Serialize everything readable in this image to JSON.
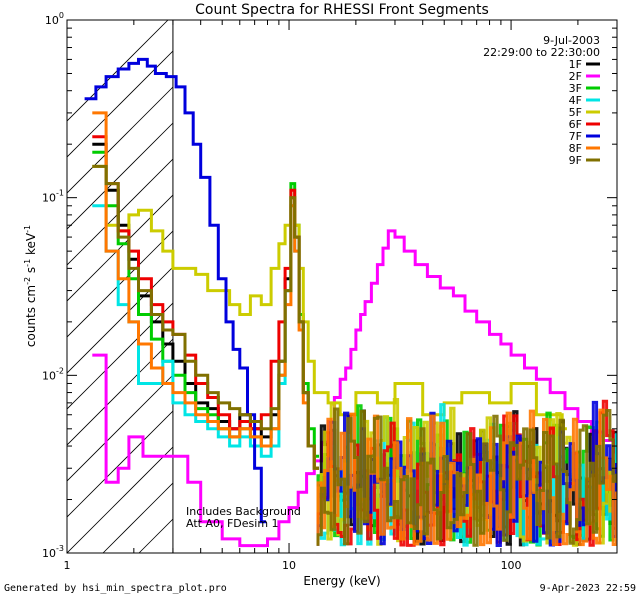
{
  "chart_data": {
    "type": "line",
    "title": "Count Spectra for RHESSI Front Segments",
    "xlabel": "Energy (keV)",
    "ylabel": "counts cm^-2 s^-1 keV^-1",
    "ylabel_parts": {
      "base": "counts cm",
      "exp1": "-2",
      "mid1": " s",
      "exp2": "-1",
      "mid2": " keV",
      "exp3": "-1"
    },
    "x_scale": "log",
    "y_scale": "log",
    "xlim": [
      1,
      300
    ],
    "ylim": [
      0.001,
      1
    ],
    "x_ticks": [
      {
        "value": 1,
        "label": "1"
      },
      {
        "value": 10,
        "label": "10"
      },
      {
        "value": 100,
        "label": "100"
      }
    ],
    "y_ticks": [
      {
        "value": 0.001,
        "base": "10",
        "exp": "-3"
      },
      {
        "value": 0.01,
        "base": "10",
        "exp": "-2"
      },
      {
        "value": 0.1,
        "base": "10",
        "exp": "-1"
      },
      {
        "value": 1,
        "base": "10",
        "exp": "0"
      }
    ],
    "legend_placement": "top-right",
    "date": "9-Jul-2003",
    "time_range": "22:29:00 to 22:30:00",
    "notes": [
      "Includes Background",
      "Att A0, FDesim 1"
    ],
    "hatched_region_below_keV": 3,
    "noise_floor_segments": [
      "1F",
      "3F",
      "4F",
      "5F",
      "6F",
      "7F",
      "8F",
      "9F"
    ],
    "series": [
      {
        "name": "1F",
        "color": "#000000",
        "x": [
          1.3,
          1.5,
          1.7,
          1.9,
          2.1,
          2.4,
          2.7,
          3.0,
          3.4,
          3.8,
          4.3,
          4.8,
          5.4,
          6.0,
          6.7,
          7.5,
          8.3,
          9.0,
          9.6,
          10.2,
          10.6,
          11.1,
          11.6,
          12.2,
          13.0
        ],
        "y": [
          0.2,
          0.11,
          0.07,
          0.045,
          0.028,
          0.02,
          0.015,
          0.012,
          0.009,
          0.007,
          0.0065,
          0.0055,
          0.005,
          0.006,
          0.005,
          0.0045,
          0.006,
          0.012,
          0.035,
          0.1,
          0.06,
          0.02,
          0.008,
          0.004,
          0.003
        ]
      },
      {
        "name": "2F",
        "color": "#ff00ff",
        "x": [
          1.3,
          1.5,
          1.7,
          1.9,
          2.2,
          2.6,
          3.0,
          3.5,
          4.0,
          5.0,
          6.0,
          7.0,
          8.0,
          9.0,
          10.0,
          11.0,
          12.0,
          13.0,
          14.0,
          15.0,
          16.0,
          17.0,
          18.0,
          19.0,
          20.0,
          21.0,
          22.0,
          23.5,
          25.0,
          26.5,
          28.0,
          30.0,
          33.0,
          37.0,
          42.0,
          48.0,
          55.0,
          62.0,
          70.0,
          80.0,
          90.0,
          100.0,
          115.0,
          130.0,
          150.0,
          175.0,
          200.0,
          230.0,
          260.0,
          290.0
        ],
        "y": [
          0.013,
          0.0025,
          0.003,
          0.0045,
          0.0035,
          0.0035,
          0.0035,
          0.0025,
          0.0015,
          0.0012,
          0.0011,
          0.0011,
          0.0012,
          0.0015,
          0.0018,
          0.0022,
          0.0028,
          0.0033,
          0.0042,
          0.0055,
          0.0075,
          0.0095,
          0.011,
          0.014,
          0.018,
          0.022,
          0.026,
          0.033,
          0.042,
          0.052,
          0.065,
          0.06,
          0.05,
          0.042,
          0.036,
          0.031,
          0.028,
          0.023,
          0.02,
          0.017,
          0.015,
          0.013,
          0.011,
          0.0095,
          0.008,
          0.0065,
          0.0055,
          0.0048,
          0.0043,
          0.0037
        ]
      },
      {
        "name": "3F",
        "color": "#00cc00",
        "x": [
          1.3,
          1.5,
          1.7,
          1.9,
          2.1,
          2.4,
          2.7,
          3.0,
          3.4,
          3.8,
          4.3,
          4.8,
          5.4,
          6.0,
          6.7,
          7.5,
          8.3,
          9.0,
          9.6,
          10.2,
          10.6,
          11.1,
          11.6,
          12.2,
          13.0
        ],
        "y": [
          0.18,
          0.09,
          0.055,
          0.035,
          0.022,
          0.016,
          0.012,
          0.01,
          0.008,
          0.0065,
          0.006,
          0.005,
          0.0045,
          0.005,
          0.0045,
          0.004,
          0.005,
          0.01,
          0.03,
          0.12,
          0.07,
          0.022,
          0.009,
          0.005,
          0.0035
        ]
      },
      {
        "name": "4F",
        "color": "#00e5e5",
        "x": [
          1.3,
          1.5,
          1.7,
          1.9,
          2.1,
          2.4,
          2.7,
          3.0,
          3.4,
          3.8,
          4.3,
          4.8,
          5.4,
          6.0,
          6.7,
          7.5,
          8.3,
          9.0,
          9.6,
          10.2,
          10.6,
          11.1,
          11.6,
          12.2,
          13.0
        ],
        "y": [
          0.09,
          0.05,
          0.025,
          0.02,
          0.009,
          0.009,
          0.012,
          0.007,
          0.006,
          0.0055,
          0.005,
          0.0045,
          0.004,
          0.0045,
          0.004,
          0.0035,
          0.004,
          0.009,
          0.03,
          0.09,
          0.05,
          0.02,
          0.008,
          0.004,
          0.003
        ]
      },
      {
        "name": "5F",
        "color": "#cccc00",
        "x": [
          1.3,
          1.5,
          1.7,
          1.9,
          2.1,
          2.4,
          2.7,
          3.0,
          3.4,
          3.8,
          4.3,
          4.8,
          5.4,
          6.0,
          6.7,
          7.5,
          8.3,
          9.0,
          9.6,
          10.2,
          10.6,
          11.1,
          11.6,
          12.2,
          13.0,
          15.0,
          17.0,
          20.0,
          25.0,
          30.0,
          40.0,
          50.0,
          60.0,
          80.0,
          100.0,
          130.0,
          170.0
        ],
        "y": [
          0.15,
          0.07,
          0.065,
          0.08,
          0.085,
          0.065,
          0.05,
          0.04,
          0.04,
          0.037,
          0.03,
          0.03,
          0.025,
          0.022,
          0.028,
          0.025,
          0.04,
          0.055,
          0.07,
          0.1,
          0.07,
          0.04,
          0.02,
          0.012,
          0.008,
          0.007,
          0.006,
          0.008,
          0.007,
          0.009,
          0.006,
          0.007,
          0.008,
          0.007,
          0.009,
          0.006,
          0.005
        ]
      },
      {
        "name": "6F",
        "color": "#ee0000",
        "x": [
          1.3,
          1.5,
          1.7,
          1.9,
          2.1,
          2.4,
          2.7,
          3.0,
          3.4,
          3.8,
          4.3,
          4.8,
          5.4,
          6.0,
          6.7,
          7.5,
          8.3,
          9.0,
          9.6,
          10.2,
          10.6,
          11.1,
          11.6,
          12.2,
          13.0
        ],
        "y": [
          0.22,
          0.12,
          0.065,
          0.05,
          0.035,
          0.025,
          0.02,
          0.017,
          0.013,
          0.009,
          0.0075,
          0.006,
          0.005,
          0.0055,
          0.005,
          0.006,
          0.012,
          0.02,
          0.04,
          0.11,
          0.06,
          0.02,
          0.008,
          0.004,
          0.003
        ]
      },
      {
        "name": "7F",
        "color": "#0000dd",
        "x": [
          1.2,
          1.35,
          1.5,
          1.7,
          1.9,
          2.1,
          2.3,
          2.5,
          2.8,
          3.1,
          3.4,
          3.7,
          4.0,
          4.4,
          4.8,
          5.2,
          5.6,
          6.0,
          6.5,
          7.0,
          7.5
        ],
        "y": [
          0.36,
          0.42,
          0.48,
          0.53,
          0.57,
          0.6,
          0.55,
          0.5,
          0.48,
          0.42,
          0.3,
          0.2,
          0.13,
          0.07,
          0.035,
          0.02,
          0.014,
          0.011,
          0.006,
          0.003,
          0.0015
        ]
      },
      {
        "name": "8F",
        "color": "#ff7700",
        "x": [
          1.3,
          1.5,
          1.7,
          1.9,
          2.1,
          2.4,
          2.7,
          3.0,
          3.4,
          3.8,
          4.3,
          4.8,
          5.4,
          6.0,
          6.7,
          7.5,
          8.3,
          9.0,
          9.6,
          10.2,
          10.6,
          11.1,
          11.6,
          12.2,
          13.0
        ],
        "y": [
          0.3,
          0.05,
          0.035,
          0.02,
          0.015,
          0.011,
          0.009,
          0.008,
          0.007,
          0.006,
          0.0055,
          0.005,
          0.0045,
          0.005,
          0.0045,
          0.004,
          0.005,
          0.01,
          0.025,
          0.09,
          0.05,
          0.018,
          0.007,
          0.004,
          0.003
        ]
      },
      {
        "name": "9F",
        "color": "#807000",
        "x": [
          1.3,
          1.5,
          1.7,
          1.9,
          2.1,
          2.4,
          2.7,
          3.0,
          3.4,
          3.8,
          4.3,
          4.8,
          5.4,
          6.0,
          6.7,
          7.5,
          8.3,
          9.0,
          9.6,
          10.2,
          10.6,
          11.1,
          11.6,
          12.2,
          13.0
        ],
        "y": [
          0.15,
          0.12,
          0.06,
          0.04,
          0.03,
          0.022,
          0.018,
          0.017,
          0.012,
          0.01,
          0.008,
          0.007,
          0.0065,
          0.006,
          0.0055,
          0.005,
          0.0065,
          0.012,
          0.03,
          0.1,
          0.06,
          0.02,
          0.008,
          0.004,
          0.003
        ]
      }
    ]
  },
  "footer": {
    "left": "Generated by hsi_min_spectra_plot.pro",
    "right": "9-Apr-2023 22:59"
  }
}
